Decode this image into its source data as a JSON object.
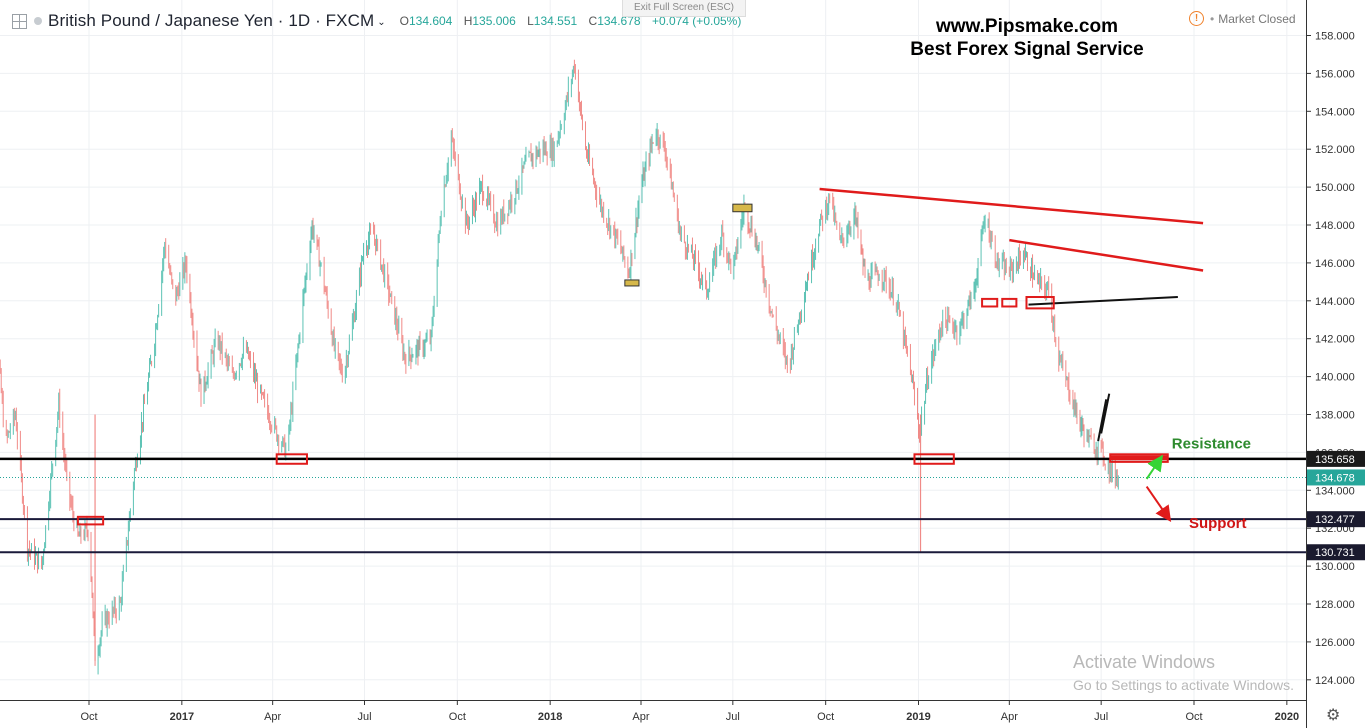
{
  "header": {
    "symbol_title": "British Pound / Japanese Yen · 1D · FXCM",
    "open_label": "O",
    "open": "134.604",
    "high_label": "H",
    "high": "135.006",
    "low_label": "L",
    "low": "134.551",
    "close_label": "C",
    "close": "134.678",
    "change": "+0.074 (+0.05%)"
  },
  "exit_fullscreen": "Exit Full Screen (ESC)",
  "market_status": "Market Closed",
  "promo": {
    "line1": "www.Pipsmake.com",
    "line2": "Best Forex Signal Service"
  },
  "watermark": {
    "line1": "Activate Windows",
    "line2": "Go to Settings to activate Windows."
  },
  "colors": {
    "up": "#26a69a",
    "down": "#ef5350",
    "drawing_red": "#e01b1b",
    "level_line": "#1a1a2e"
  },
  "icons": {
    "settings": "gear-icon",
    "warning": "warning-icon"
  },
  "chart_data": {
    "type": "candlestick",
    "ylim": [
      123,
      159
    ],
    "yticks": [
      124,
      126,
      128,
      130,
      132,
      134,
      136,
      138,
      140,
      142,
      144,
      146,
      148,
      150,
      152,
      154,
      156,
      158
    ],
    "xticks": [
      "Oct",
      "2017",
      "Apr",
      "Jul",
      "Oct",
      "2018",
      "Apr",
      "Jul",
      "Oct",
      "2019",
      "Apr",
      "Jul",
      "Oct",
      "2020"
    ],
    "xtick_dates": [
      "2016-10-01",
      "2017-01-01",
      "2017-04-01",
      "2017-07-01",
      "2017-10-01",
      "2018-01-01",
      "2018-04-01",
      "2018-07-01",
      "2018-10-01",
      "2019-01-01",
      "2019-04-01",
      "2019-07-01",
      "2019-10-01",
      "2020-01-01"
    ],
    "date_range": [
      "2016-06-20",
      "2019-12-31"
    ],
    "price_labels": [
      {
        "value": 135.658,
        "text": "135.658",
        "color": "#1a1a1a"
      },
      {
        "value": 134.678,
        "text": "134.678",
        "color": "#26a69a"
      },
      {
        "value": 132.477,
        "text": "132.477",
        "color": "#1a1a2e"
      },
      {
        "value": 130.731,
        "text": "130.731",
        "color": "#1a1a2e"
      }
    ],
    "horizontal_levels": [
      135.658,
      132.477,
      130.731
    ],
    "current_price": 134.678,
    "path_points": [
      [
        "2016-06-20",
        131.0
      ],
      [
        "2016-07-01",
        142.5
      ],
      [
        "2016-07-10",
        136.5
      ],
      [
        "2016-07-20",
        138.0
      ],
      [
        "2016-08-01",
        131.0
      ],
      [
        "2016-08-15",
        130.0
      ],
      [
        "2016-09-01",
        138.5
      ],
      [
        "2016-09-10",
        134.0
      ],
      [
        "2016-09-20",
        131.5
      ],
      [
        "2016-10-01",
        132.0
      ],
      [
        "2016-10-07",
        125.0
      ],
      [
        "2016-10-15",
        127.0
      ],
      [
        "2016-11-01",
        128.0
      ],
      [
        "2016-11-15",
        135.0
      ],
      [
        "2016-12-05",
        142.0
      ],
      [
        "2016-12-15",
        147.0
      ],
      [
        "2016-12-25",
        144.0
      ],
      [
        "2017-01-05",
        146.0
      ],
      [
        "2017-01-20",
        139.0
      ],
      [
        "2017-02-05",
        142.0
      ],
      [
        "2017-02-20",
        140.0
      ],
      [
        "2017-03-05",
        141.5
      ],
      [
        "2017-03-20",
        139.0
      ],
      [
        "2017-04-05",
        137.0
      ],
      [
        "2017-04-15",
        136.0
      ],
      [
        "2017-05-01",
        144.0
      ],
      [
        "2017-05-10",
        148.0
      ],
      [
        "2017-05-20",
        145.5
      ],
      [
        "2017-06-01",
        141.5
      ],
      [
        "2017-06-10",
        140.0
      ],
      [
        "2017-06-20",
        143.0
      ],
      [
        "2017-07-01",
        147.0
      ],
      [
        "2017-07-10",
        147.5
      ],
      [
        "2017-07-25",
        144.5
      ],
      [
        "2017-08-10",
        141.0
      ],
      [
        "2017-08-25",
        141.5
      ],
      [
        "2017-09-05",
        142.0
      ],
      [
        "2017-09-15",
        149.0
      ],
      [
        "2017-09-25",
        152.5
      ],
      [
        "2017-10-10",
        148.0
      ],
      [
        "2017-10-25",
        150.0
      ],
      [
        "2017-11-10",
        148.0
      ],
      [
        "2017-11-25",
        149.5
      ],
      [
        "2017-12-10",
        151.5
      ],
      [
        "2017-12-25",
        152.0
      ],
      [
        "2018-01-05",
        152.0
      ],
      [
        "2018-01-15",
        154.0
      ],
      [
        "2018-01-25",
        156.5
      ],
      [
        "2018-02-05",
        152.0
      ],
      [
        "2018-02-20",
        149.0
      ],
      [
        "2018-03-10",
        147.0
      ],
      [
        "2018-03-20",
        145.5
      ],
      [
        "2018-04-01",
        150.0
      ],
      [
        "2018-04-15",
        153.0
      ],
      [
        "2018-04-25",
        152.0
      ],
      [
        "2018-05-10",
        147.5
      ],
      [
        "2018-05-25",
        146.0
      ],
      [
        "2018-06-05",
        144.5
      ],
      [
        "2018-06-20",
        147.5
      ],
      [
        "2018-07-01",
        145.5
      ],
      [
        "2018-07-12",
        149.0
      ],
      [
        "2018-07-25",
        147.0
      ],
      [
        "2018-08-10",
        143.0
      ],
      [
        "2018-08-25",
        140.5
      ],
      [
        "2018-09-10",
        144.5
      ],
      [
        "2018-09-25",
        148.0
      ],
      [
        "2018-10-05",
        149.5
      ],
      [
        "2018-10-15",
        147.0
      ],
      [
        "2018-10-30",
        148.5
      ],
      [
        "2018-11-10",
        145.0
      ],
      [
        "2018-11-25",
        145.5
      ],
      [
        "2018-12-10",
        144.0
      ],
      [
        "2018-12-25",
        140.0
      ],
      [
        "2019-01-02",
        137.0
      ],
      [
        "2019-01-10",
        140.0
      ],
      [
        "2019-01-25",
        143.0
      ],
      [
        "2019-02-10",
        142.5
      ],
      [
        "2019-02-25",
        144.5
      ],
      [
        "2019-03-08",
        148.5
      ],
      [
        "2019-03-20",
        146.0
      ],
      [
        "2019-04-01",
        145.5
      ],
      [
        "2019-04-15",
        146.5
      ],
      [
        "2019-04-28",
        145.0
      ],
      [
        "2019-05-10",
        144.5
      ],
      [
        "2019-05-20",
        141.0
      ],
      [
        "2019-06-01",
        139.0
      ],
      [
        "2019-06-10",
        137.5
      ],
      [
        "2019-06-20",
        136.5
      ],
      [
        "2019-06-30",
        136.2
      ],
      [
        "2019-07-10",
        135.0
      ],
      [
        "2019-07-18",
        134.7
      ]
    ],
    "tooltip_spikes": [
      {
        "date": "2019-01-03",
        "low": 130.731
      },
      {
        "date": "2016-10-07",
        "low": 125.0
      }
    ],
    "annotations": {
      "trendlines": [
        {
          "from": [
            "2018-09-25",
            149.9
          ],
          "to": [
            "2019-10-10",
            148.1
          ],
          "color": "#e01b1b"
        },
        {
          "from": [
            "2019-04-01",
            147.2
          ],
          "to": [
            "2019-10-10",
            145.6
          ],
          "color": "#e01b1b"
        },
        {
          "from": [
            "2019-04-20",
            143.8
          ],
          "to": [
            "2019-09-15",
            144.2
          ],
          "color": "#111111"
        },
        {
          "from": [
            "2019-06-28",
            136.6
          ],
          "to": [
            "2019-07-06",
            138.8
          ],
          "color": "#111111"
        },
        {
          "from": [
            "2019-07-01",
            137.0
          ],
          "to": [
            "2019-07-09",
            139.1
          ],
          "color": "#111111"
        }
      ],
      "red_boxes": [
        {
          "from": [
            "2016-09-20",
            132.6
          ],
          "to": [
            "2016-10-15",
            132.2
          ]
        },
        {
          "from": [
            "2017-04-05",
            135.9
          ],
          "to": [
            "2017-05-05",
            135.4
          ]
        },
        {
          "from": [
            "2018-12-28",
            135.9
          ],
          "to": [
            "2019-02-05",
            135.4
          ]
        },
        {
          "from": [
            "2019-03-05",
            144.1
          ],
          "to": [
            "2019-03-20",
            143.7
          ]
        },
        {
          "from": [
            "2019-03-25",
            144.1
          ],
          "to": [
            "2019-04-08",
            143.7
          ]
        },
        {
          "from": [
            "2019-04-18",
            144.2
          ],
          "to": [
            "2019-05-15",
            143.6
          ]
        },
        {
          "from": [
            "2019-07-10",
            135.9
          ],
          "to": [
            "2019-09-05",
            135.5
          ]
        }
      ],
      "gold_boxes": [
        {
          "from": [
            "2018-03-16",
            145.1
          ],
          "to": [
            "2018-03-30",
            144.8
          ]
        },
        {
          "from": [
            "2018-07-01",
            149.1
          ],
          "to": [
            "2018-07-20",
            148.7
          ]
        }
      ],
      "arrows": [
        {
          "from": [
            "2019-08-25",
            134.6
          ],
          "to": [
            "2019-09-08",
            135.7
          ],
          "color": "#35d435"
        },
        {
          "from": [
            "2019-08-25",
            134.2
          ],
          "to": [
            "2019-09-16",
            132.5
          ],
          "color": "#e01b1b"
        }
      ],
      "labels": [
        {
          "text": "Resistance",
          "color": "#2e8b2e",
          "at": [
            "2019-09-09",
            136.2
          ]
        },
        {
          "text": "Support",
          "color": "#d01515",
          "at": [
            "2019-09-26",
            132.0
          ]
        }
      ]
    }
  }
}
